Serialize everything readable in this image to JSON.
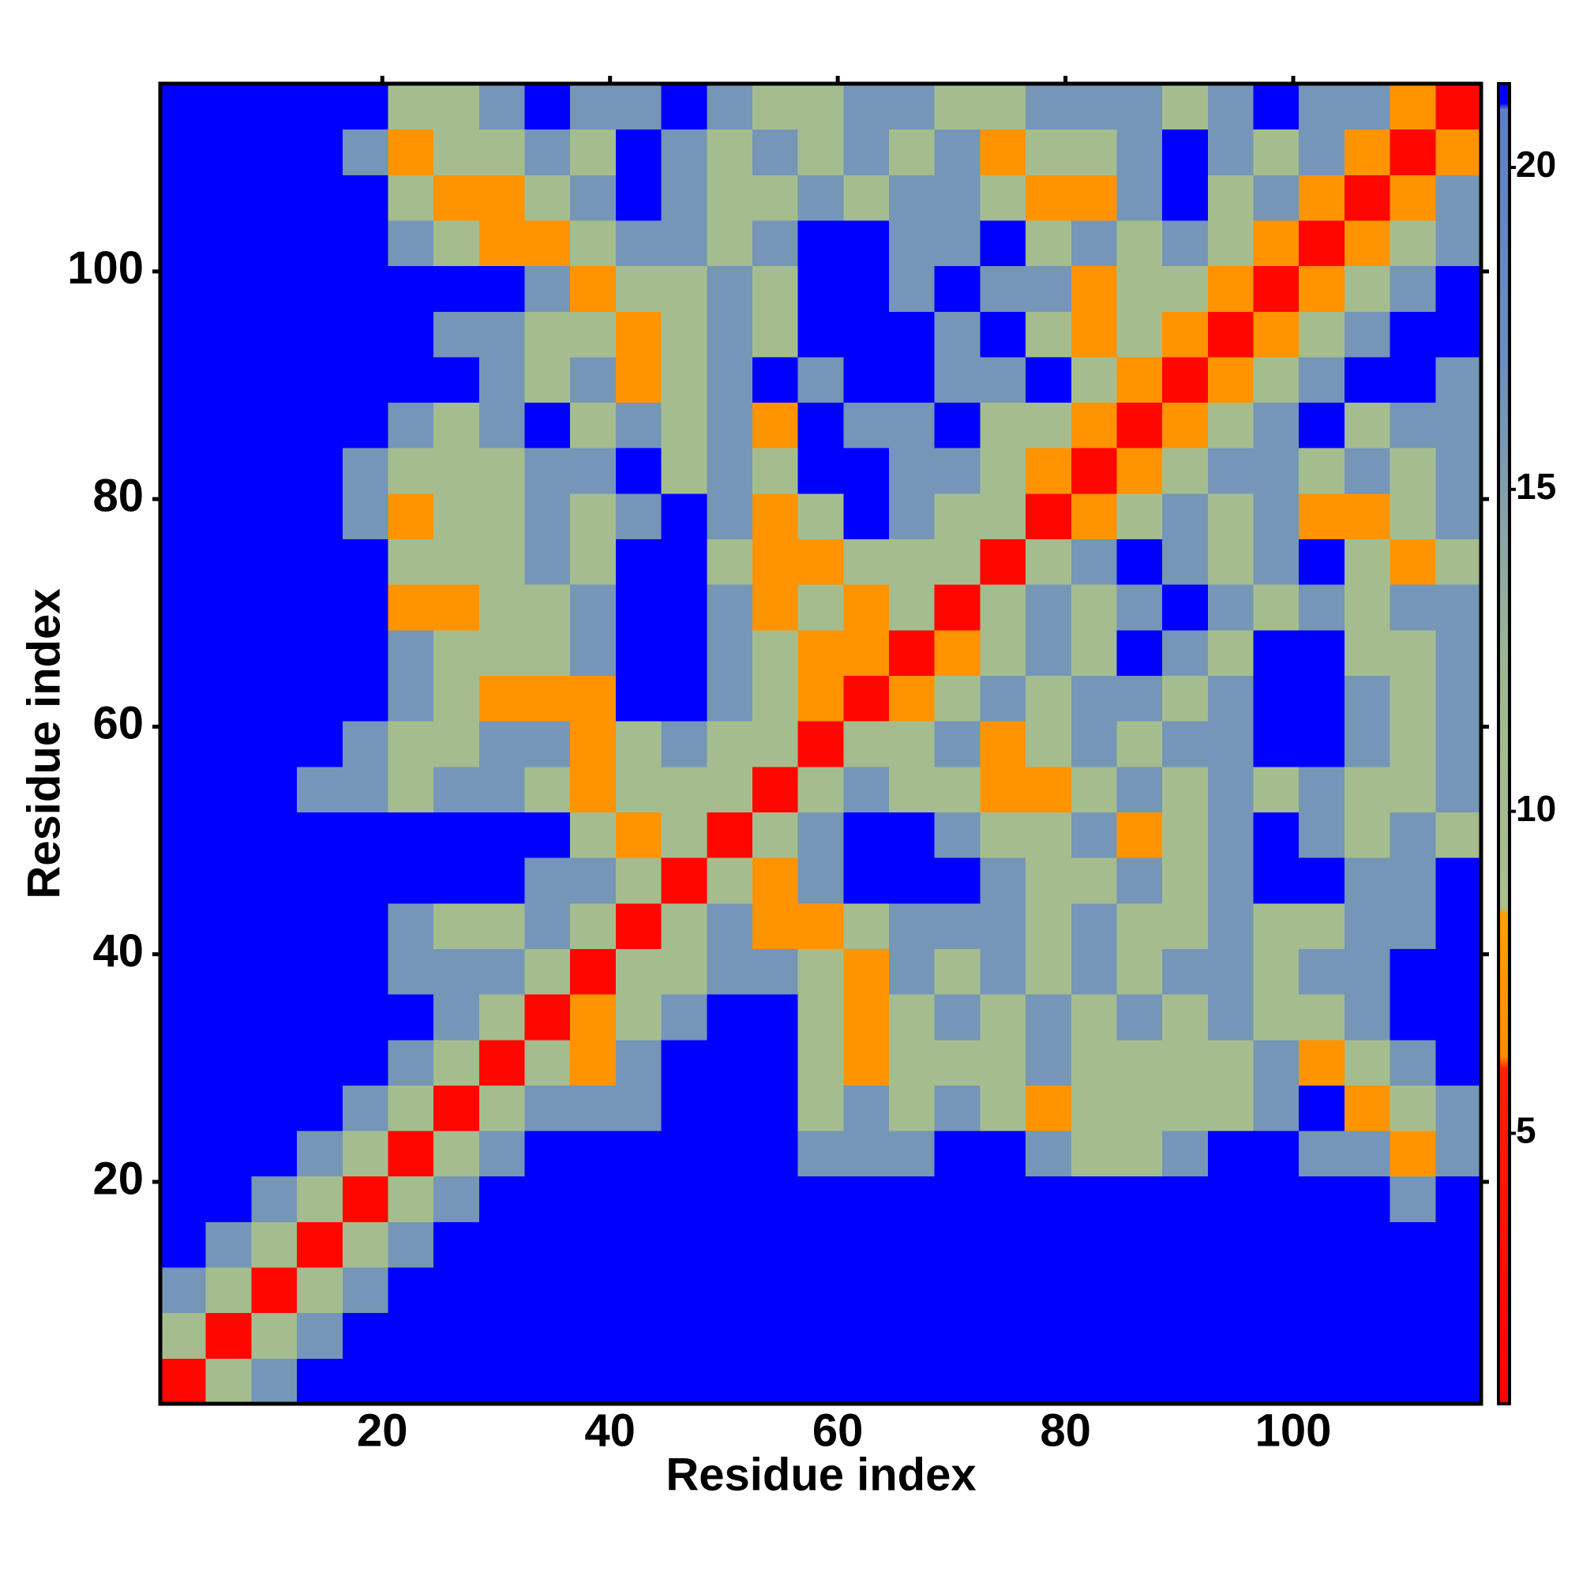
{
  "chart_data": {
    "type": "heatmap",
    "xlabel": "Residue index",
    "ylabel": "Residue index",
    "xlim": [
      0.5,
      116.5
    ],
    "ylim": [
      0.5,
      116.5
    ],
    "xticks": [
      20,
      40,
      60,
      80,
      100
    ],
    "yticks": [
      20,
      40,
      60,
      80,
      100
    ],
    "xbins": [
      0.5,
      4.5,
      8.5,
      12.5,
      16.5,
      20.5,
      24.5,
      28.5,
      32.5,
      36.5,
      40.5,
      44.5,
      48.5,
      52.5,
      56.5,
      60.5,
      64.5,
      68.5,
      72.5,
      76.5,
      80.5,
      84.5,
      88.5,
      92.5,
      96.5,
      100.5,
      104.5,
      108.5,
      112.5,
      116.5
    ],
    "ybins": [
      0.5,
      4.5,
      8.5,
      12.5,
      16.5,
      20.5,
      24.5,
      28.5,
      32.5,
      36.5,
      40.5,
      44.5,
      48.5,
      52.5,
      56.5,
      60.5,
      64.5,
      68.5,
      72.5,
      76.5,
      80.5,
      84.5,
      88.5,
      92.5,
      96.5,
      100.5,
      104.5,
      108.5,
      112.5,
      116.5
    ],
    "zlim": [
      0.8,
      21.3
    ],
    "zticks": [
      5,
      10,
      15,
      20
    ],
    "colorscale": [
      [
        0.8,
        "#ff0000"
      ],
      [
        6.0,
        "#ff2000"
      ],
      [
        6.2,
        "#ff8c00"
      ],
      [
        8.4,
        "#ffa000"
      ],
      [
        8.5,
        "#a9c08c"
      ],
      [
        12,
        "#a0b890"
      ],
      [
        17,
        "#6a8ec0"
      ],
      [
        20.9,
        "#5a80c4"
      ],
      [
        21,
        "#0000ff"
      ],
      [
        21.3,
        "#0000ff"
      ]
    ],
    "z": [
      [
        2,
        10,
        16,
        21,
        21,
        21,
        21,
        21,
        21,
        21,
        21,
        21,
        21,
        21,
        21,
        21,
        21,
        21,
        21,
        21,
        21,
        21,
        21,
        21,
        21,
        21,
        21,
        21,
        21
      ],
      [
        10,
        2,
        10,
        16,
        21,
        21,
        21,
        21,
        21,
        21,
        21,
        21,
        21,
        21,
        21,
        21,
        21,
        21,
        21,
        21,
        21,
        21,
        21,
        21,
        21,
        21,
        21,
        21,
        21
      ],
      [
        16,
        10,
        2,
        10,
        16,
        21,
        21,
        21,
        21,
        21,
        21,
        21,
        21,
        21,
        21,
        21,
        21,
        21,
        21,
        21,
        21,
        21,
        21,
        21,
        21,
        21,
        21,
        21,
        21
      ],
      [
        21,
        16,
        10,
        2,
        10,
        16,
        21,
        21,
        21,
        21,
        21,
        21,
        21,
        21,
        21,
        21,
        21,
        21,
        21,
        21,
        21,
        21,
        21,
        21,
        21,
        21,
        21,
        21,
        21
      ],
      [
        21,
        21,
        16,
        10,
        2,
        10,
        16,
        21,
        21,
        21,
        21,
        21,
        21,
        21,
        21,
        21,
        21,
        21,
        21,
        21,
        21,
        21,
        21,
        21,
        21,
        21,
        21,
        16,
        21
      ],
      [
        21,
        21,
        21,
        16,
        10,
        2,
        10,
        16,
        21,
        21,
        21,
        21,
        21,
        21,
        16,
        16,
        16,
        21,
        21,
        16,
        10,
        10,
        16,
        21,
        21,
        16,
        16,
        7,
        16
      ],
      [
        21,
        21,
        21,
        21,
        16,
        10,
        2,
        10,
        16,
        16,
        16,
        21,
        21,
        21,
        10,
        16,
        10,
        16,
        10,
        7,
        10,
        10,
        10,
        10,
        16,
        21,
        7,
        10,
        16
      ],
      [
        21,
        21,
        21,
        21,
        21,
        16,
        10,
        2,
        10,
        7,
        16,
        21,
        21,
        21,
        10,
        7,
        10,
        10,
        10,
        16,
        10,
        10,
        10,
        10,
        16,
        7,
        10,
        16,
        21
      ],
      [
        21,
        21,
        21,
        21,
        21,
        21,
        16,
        10,
        2,
        7,
        10,
        16,
        21,
        21,
        10,
        7,
        10,
        16,
        10,
        16,
        10,
        16,
        10,
        16,
        10,
        10,
        16,
        21,
        21
      ],
      [
        21,
        21,
        21,
        21,
        21,
        16,
        16,
        16,
        10,
        2,
        10,
        10,
        16,
        16,
        10,
        7,
        16,
        10,
        16,
        10,
        16,
        10,
        16,
        16,
        10,
        16,
        16,
        21,
        21
      ],
      [
        21,
        21,
        21,
        21,
        21,
        16,
        10,
        10,
        16,
        10,
        2,
        10,
        16,
        7,
        7,
        10,
        16,
        16,
        16,
        10,
        16,
        10,
        10,
        16,
        10,
        10,
        16,
        16,
        21
      ],
      [
        21,
        21,
        21,
        21,
        21,
        21,
        21,
        21,
        16,
        16,
        10,
        2,
        10,
        7,
        16,
        21,
        21,
        21,
        16,
        10,
        10,
        16,
        10,
        16,
        21,
        21,
        16,
        16,
        21
      ],
      [
        21,
        21,
        21,
        21,
        21,
        21,
        21,
        21,
        21,
        10,
        7,
        10,
        2,
        10,
        16,
        21,
        21,
        16,
        10,
        10,
        16,
        7,
        10,
        16,
        21,
        16,
        10,
        16,
        10
      ],
      [
        21,
        21,
        21,
        16,
        16,
        10,
        16,
        16,
        10,
        7,
        10,
        10,
        10,
        2,
        10,
        16,
        10,
        10,
        7,
        7,
        10,
        16,
        10,
        16,
        10,
        16,
        10,
        10,
        16
      ],
      [
        21,
        21,
        21,
        21,
        16,
        10,
        10,
        16,
        16,
        7,
        10,
        16,
        10,
        10,
        2,
        10,
        10,
        16,
        7,
        10,
        16,
        10,
        16,
        16,
        21,
        21,
        16,
        10,
        16
      ],
      [
        21,
        21,
        21,
        21,
        21,
        16,
        10,
        7,
        7,
        7,
        21,
        21,
        16,
        10,
        7,
        2,
        7,
        10,
        16,
        10,
        16,
        16,
        10,
        16,
        21,
        21,
        16,
        10,
        16
      ],
      [
        21,
        21,
        21,
        21,
        21,
        16,
        10,
        10,
        10,
        16,
        21,
        21,
        16,
        10,
        7,
        7,
        2,
        7,
        10,
        16,
        10,
        21,
        16,
        10,
        21,
        21,
        10,
        10,
        16
      ],
      [
        21,
        21,
        21,
        21,
        21,
        7,
        7,
        10,
        10,
        16,
        21,
        21,
        16,
        7,
        10,
        7,
        10,
        2,
        10,
        16,
        10,
        16,
        21,
        16,
        10,
        16,
        10,
        16,
        16
      ],
      [
        21,
        21,
        21,
        21,
        21,
        10,
        10,
        10,
        16,
        10,
        21,
        21,
        10,
        7,
        7,
        10,
        10,
        10,
        2,
        10,
        16,
        21,
        16,
        10,
        16,
        21,
        10,
        7,
        10
      ],
      [
        21,
        21,
        21,
        21,
        16,
        7,
        10,
        10,
        16,
        10,
        16,
        21,
        16,
        7,
        10,
        21,
        16,
        10,
        10,
        2,
        7,
        10,
        16,
        10,
        16,
        7,
        7,
        10,
        16
      ],
      [
        21,
        21,
        21,
        21,
        16,
        10,
        10,
        10,
        16,
        16,
        21,
        10,
        16,
        10,
        21,
        21,
        16,
        16,
        10,
        7,
        2,
        7,
        10,
        16,
        16,
        10,
        16,
        10,
        16
      ],
      [
        21,
        21,
        21,
        21,
        21,
        16,
        10,
        16,
        21,
        10,
        16,
        10,
        16,
        7,
        21,
        16,
        16,
        21,
        10,
        10,
        7,
        2,
        7,
        10,
        16,
        21,
        10,
        16,
        16
      ],
      [
        21,
        21,
        21,
        21,
        21,
        21,
        21,
        16,
        10,
        16,
        7,
        10,
        16,
        21,
        16,
        21,
        21,
        16,
        16,
        21,
        10,
        7,
        2,
        7,
        10,
        16,
        21,
        21,
        16
      ],
      [
        21,
        21,
        21,
        21,
        21,
        21,
        16,
        16,
        10,
        10,
        7,
        10,
        16,
        10,
        21,
        21,
        21,
        16,
        21,
        10,
        7,
        10,
        7,
        2,
        7,
        10,
        16,
        21,
        21
      ],
      [
        21,
        21,
        21,
        21,
        21,
        21,
        21,
        21,
        16,
        7,
        10,
        10,
        16,
        10,
        21,
        21,
        16,
        21,
        16,
        16,
        7,
        10,
        10,
        7,
        2,
        7,
        10,
        16,
        21
      ],
      [
        21,
        21,
        21,
        21,
        21,
        16,
        10,
        7,
        7,
        10,
        16,
        16,
        10,
        16,
        21,
        21,
        16,
        16,
        21,
        10,
        16,
        10,
        16,
        10,
        7,
        2,
        7,
        10,
        16
      ],
      [
        21,
        21,
        21,
        21,
        21,
        10,
        7,
        7,
        10,
        16,
        21,
        16,
        10,
        10,
        16,
        10,
        16,
        16,
        10,
        7,
        7,
        16,
        21,
        10,
        16,
        7,
        2,
        7,
        16
      ],
      [
        21,
        21,
        21,
        21,
        16,
        7,
        10,
        10,
        16,
        10,
        21,
        16,
        10,
        16,
        10,
        16,
        10,
        16,
        7,
        10,
        10,
        16,
        21,
        16,
        10,
        16,
        7,
        2,
        7
      ],
      [
        21,
        21,
        21,
        21,
        21,
        10,
        10,
        16,
        21,
        16,
        16,
        21,
        16,
        10,
        10,
        16,
        16,
        10,
        10,
        16,
        16,
        16,
        10,
        16,
        21,
        16,
        16,
        7,
        2
      ]
    ]
  }
}
